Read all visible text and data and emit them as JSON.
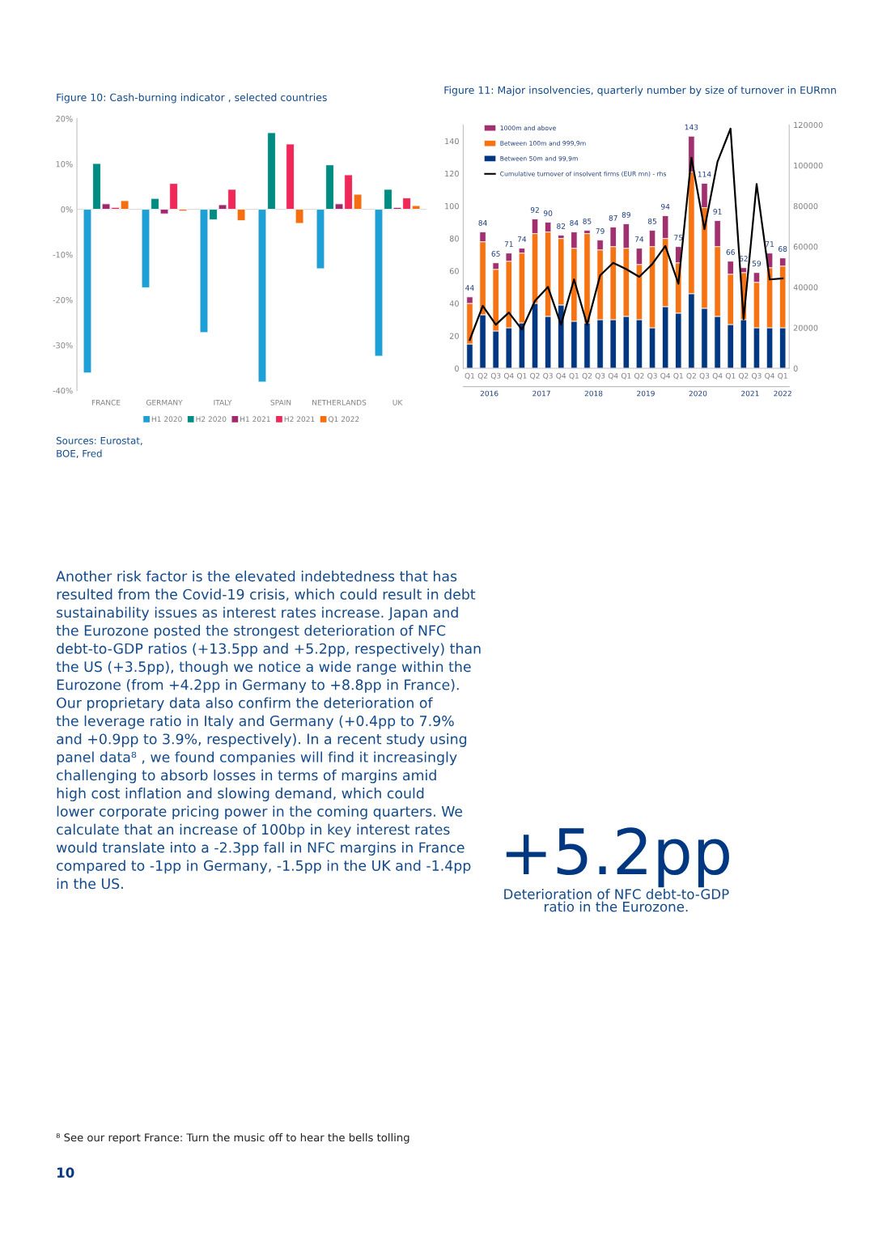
{
  "chart_data": [
    {
      "type": "bar",
      "title": "Figure 10: Cash-burning indicator , selected countries",
      "categories": [
        "FRANCE",
        "GERMANY",
        "ITALY",
        "SPAIN",
        "NETHERLANDS",
        "UK"
      ],
      "series": [
        {
          "name": "H1 2020",
          "color": "#1ea0d6",
          "values": [
            -36.1,
            -17.3,
            -27.2,
            -38.1,
            -13.1,
            -32.4
          ]
        },
        {
          "name": "H2 2020",
          "color": "#008c82",
          "values": [
            10.1,
            2.4,
            -2.3,
            16.9,
            9.8,
            4.4
          ]
        },
        {
          "name": "H1 2021",
          "color": "#a0286e",
          "values": [
            1.2,
            -1.0,
            1.0,
            null,
            1.2,
            0.4
          ]
        },
        {
          "name": "H2 2021",
          "color": "#f0285a",
          "values": [
            0.4,
            5.7,
            4.4,
            14.4,
            7.6,
            2.5
          ]
        },
        {
          "name": "Q1 2022",
          "color": "#f56e0f",
          "values": [
            1.9,
            -0.4,
            -2.5,
            -3.1,
            3.3,
            0.8
          ]
        }
      ],
      "ylim": [
        -40,
        20
      ],
      "yticks": [
        {
          "value": -40,
          "label": "-40%"
        },
        {
          "value": -30,
          "label": "-30%"
        },
        {
          "value": -20,
          "label": "-20%"
        },
        {
          "value": -10,
          "label": "-10%"
        },
        {
          "value": 0,
          "label": "0%"
        },
        {
          "value": 10,
          "label": "10%"
        },
        {
          "value": 20,
          "label": "20%"
        }
      ],
      "ref_lines": [
        {
          "axis": "y",
          "value": 0,
          "color": "#dddddd"
        }
      ],
      "grid": false,
      "legend": "bottom",
      "annotations": [
        "Sources: Eurostat,\nBOE, Fred"
      ]
    },
    {
      "type": "bar",
      "stacked": true,
      "title": "Figure 11: Major insolvencies, quarterly number by size of turnover in EURmn",
      "categories": [
        "Q1",
        "Q2",
        "Q3",
        "Q4",
        "Q1",
        "Q2",
        "Q3",
        "Q4",
        "Q1",
        "Q2",
        "Q3",
        "Q4",
        "Q1",
        "Q2",
        "Q3",
        "Q4",
        "Q1",
        "Q2",
        "Q3",
        "Q4",
        "Q1",
        "Q2",
        "Q3",
        "Q4",
        "Q1"
      ],
      "series": [
        {
          "name": "Between 50m and 99,9m",
          "color": "#003781",
          "values": [
            15,
            33,
            23,
            25,
            28,
            40,
            32,
            39,
            29,
            28,
            30,
            30,
            32,
            30,
            25,
            38,
            34,
            46,
            37,
            32,
            27,
            30,
            25,
            25,
            25
          ]
        },
        {
          "name": "Between 100m and 999,9m",
          "color": "#f57312",
          "values": [
            25,
            45,
            38,
            41,
            43,
            43,
            52,
            41,
            45,
            55,
            43,
            45,
            42,
            34,
            50,
            42,
            31,
            75,
            62,
            43,
            31,
            29,
            28,
            37,
            38
          ]
        },
        {
          "name": "1000m and above",
          "color": "#a0306e",
          "values": [
            4,
            6,
            4,
            5,
            3,
            9,
            6,
            2,
            10,
            2,
            6,
            12,
            15,
            10,
            10,
            14,
            10,
            22,
            15,
            16,
            8,
            3,
            6,
            9,
            5
          ]
        },
        {
          "name": "Cumulative turnover of insolvent firms (EUR mn) - rhs",
          "type": "line",
          "axis": "y2",
          "color": "#000000",
          "values": [
            14000,
            30800,
            21500,
            27500,
            19100,
            33200,
            40100,
            21500,
            43800,
            21500,
            45800,
            52000,
            48900,
            45100,
            51400,
            60300,
            41700,
            103800,
            68600,
            101800,
            118100,
            24200,
            90800,
            43800,
            44300
          ]
        }
      ],
      "totals": [
        "44",
        "84",
        "65",
        "71",
        "74",
        "92",
        "90",
        "82",
        "84",
        "85",
        "79",
        "87",
        "89",
        "74",
        "85",
        "94",
        "75",
        "143",
        "114",
        "91",
        "66",
        "62",
        "59",
        "71",
        "68"
      ],
      "ylim": [
        0,
        150
      ],
      "yticks": [
        0,
        20,
        40,
        60,
        80,
        100,
        120,
        140
      ],
      "y2lim": [
        0,
        120000
      ],
      "y2ticks": [
        0,
        20000,
        40000,
        60000,
        80000,
        100000,
        120000
      ],
      "grid": false,
      "legend": "top left",
      "line_style": "solid",
      "marker": "none",
      "x2lim": [
        2016,
        2022.25
      ],
      "x2ticks": [
        {
          "value": 2016.5,
          "label": "2016"
        },
        {
          "value": 2017.5,
          "label": "2017"
        },
        {
          "value": 2018.5,
          "label": "2018"
        },
        {
          "value": 2019.5,
          "label": "2019"
        },
        {
          "value": 2020.5,
          "label": "2020"
        },
        {
          "value": 2021.5,
          "label": "2021"
        },
        {
          "value": 2022.125,
          "label": "2022"
        }
      ]
    },
    {
      "type": "other",
      "annotations": [
        "Another risk factor is the elevated indebtedness that has\nresulted from the Covid-19 crisis, which could result in debt\nsustainability issues as interest rates increase. Japan and\nthe Eurozone posted the strongest deterioration of NFC\ndebt-to-GDP ratios (+13.5pp and +5.2pp, respectively) than\nthe US (+3.5pp), though we notice a wide range within the\nEurozone (from +4.2pp in Germany to +8.8pp in France).\nOur proprietary data also confirm the deterioration of\nthe leverage ratio in Italy and Germany (+0.4pp to 7.9%\nand +0.9pp to 3.9%, respectively). In a recent study using\npanel data⁸ , we found companies will find it increasingly\nchallenging to absorb losses in terms of margins amid\nhigh cost inflation and slowing demand, which could\nlower corporate pricing power in the coming quarters. We\ncalculate that an increase of 100bp in key interest rates\nwould translate into a -2.3pp fall in NFC margins in France\ncompared to -1pp in Germany, -1.5pp in the UK and -1.4pp\nin the US.",
        "+5.2pp",
        "Deterioration of NFC debt-to-GDP\nratio in the Eurozone.",
        "⁸ See our report France: Turn the music off to hear the bells tolling",
        "10"
      ]
    }
  ]
}
